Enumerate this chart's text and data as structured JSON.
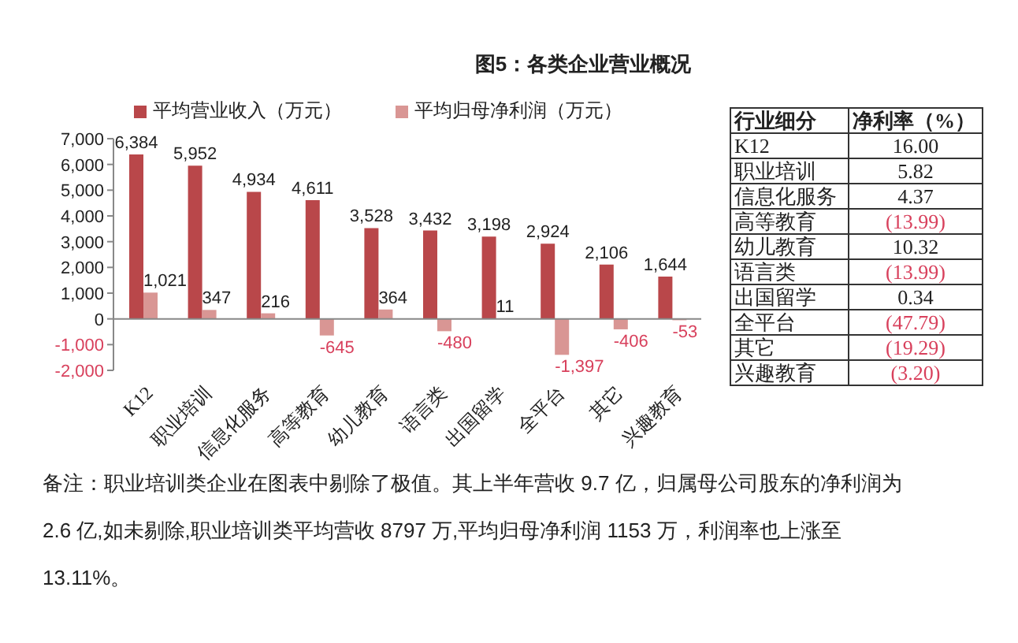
{
  "chart_data": [
    {
      "type": "bar",
      "title": "图5：各类企业营业概况",
      "categories": [
        "K12",
        "职业培训",
        "信息化服务",
        "高等教育",
        "幼儿教育",
        "语言类",
        "出国留学",
        "全平台",
        "其它",
        "兴趣教育"
      ],
      "series": [
        {
          "name": "平均营业收入（万元）",
          "color": "#b9474a",
          "values": [
            6384,
            5952,
            4934,
            4611,
            3528,
            3432,
            3198,
            2924,
            2106,
            1644
          ],
          "value_labels": [
            "6,384",
            "5,952",
            "4,934",
            "4,611",
            "3,528",
            "3,432",
            "3,198",
            "2,924",
            "2,106",
            "1,644"
          ]
        },
        {
          "name": "平均归母净利润（万元）",
          "color": "#d99694",
          "values": [
            1021,
            347,
            216,
            -645,
            364,
            -480,
            11,
            -1397,
            -406,
            -53
          ],
          "value_labels": [
            "1,021",
            "347",
            "216",
            "-645",
            "364",
            "-480",
            "11",
            "-1,397",
            "-406",
            "-53"
          ]
        }
      ],
      "ylim": [
        -2000,
        7000
      ],
      "yticks": [
        {
          "value": -2000,
          "label": "-2,000"
        },
        {
          "value": -1000,
          "label": "-1,000"
        },
        0,
        {
          "value": 1000,
          "label": "1,000"
        },
        {
          "value": 2000,
          "label": "2,000"
        },
        {
          "value": 3000,
          "label": "3,000"
        },
        {
          "value": 4000,
          "label": "4,000"
        },
        {
          "value": 5000,
          "label": "5,000"
        },
        {
          "value": 6000,
          "label": "6,000"
        },
        {
          "value": 7000,
          "label": "7,000"
        }
      ],
      "legend": "top",
      "annotations": [
        "备注：职业培训类企业在图表中剔除了极值。其上半年营收 9.7 亿，归属母公司股东的净利润为 2.6 亿,如未剔除,职业培训类平均营收 8797 万,平均归母净利润 1153 万，利润率也上涨至 13.11%。"
      ]
    },
    {
      "type": "other",
      "xlabel": "行业细分",
      "ylabel": "净利率（%）",
      "categories": [
        "K12",
        "职业培训",
        "信息化服务",
        "高等教育",
        "幼儿教育",
        "语言类",
        "出国留学",
        "全平台",
        "其它",
        "兴趣教育"
      ],
      "values": [
        16.0,
        5.82,
        4.37,
        -13.99,
        10.32,
        -13.99,
        0.34,
        -47.79,
        -19.29,
        -3.2
      ],
      "value_labels": [
        "16.00",
        "5.82",
        "4.37",
        "(13.99)",
        "10.32",
        "(13.99)",
        "0.34",
        "(47.79)",
        "(19.29)",
        "(3.20)"
      ]
    }
  ]
}
